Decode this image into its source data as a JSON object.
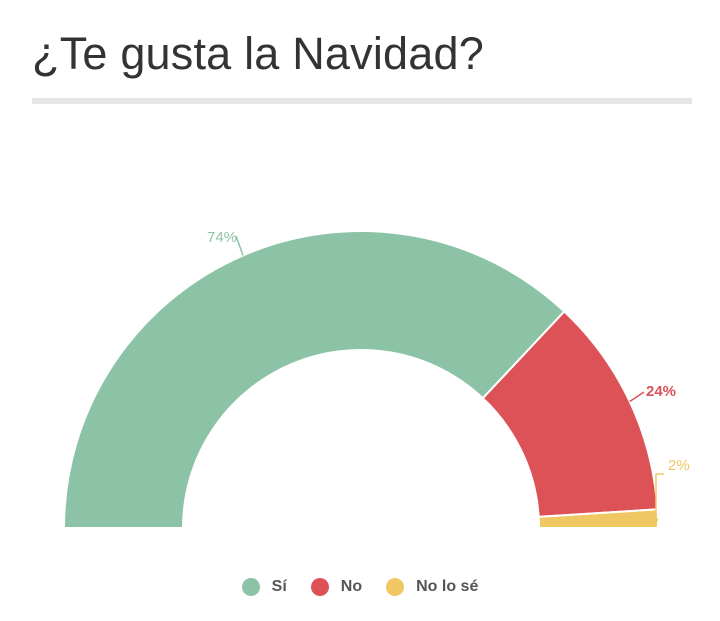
{
  "title": "¿Te gusta la Navidad?",
  "chart_data": {
    "type": "pie",
    "variant": "semicircle-donut",
    "title": "¿Te gusta la Navidad?",
    "categories": [
      "Sí",
      "No",
      "No lo sé"
    ],
    "values": [
      74,
      24,
      2
    ],
    "labels": [
      "74%",
      "24%",
      "2%"
    ],
    "colors": [
      "#8cc3a7",
      "#dc5257",
      "#f0c863"
    ],
    "legend_position": "bottom-center"
  }
}
